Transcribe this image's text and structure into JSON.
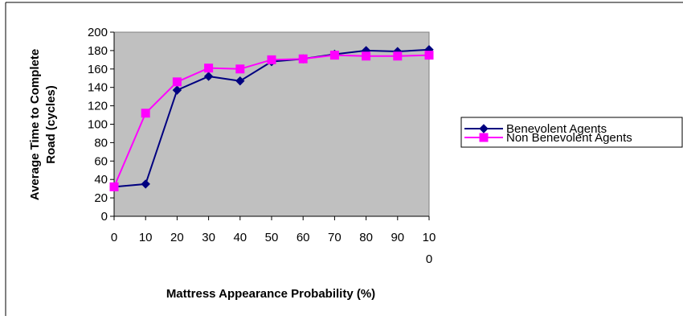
{
  "chart_data": {
    "type": "line",
    "xlabel": "Mattress Appearance Probability  (%)",
    "ylabel_lines": [
      "Average Time to Complete",
      "Road (cycles)"
    ],
    "x": [
      0,
      10,
      20,
      30,
      40,
      50,
      60,
      70,
      80,
      90,
      100
    ],
    "x_tick_labels": [
      "0",
      "10",
      "20",
      "30",
      "40",
      "50",
      "60",
      "70",
      "80",
      "90",
      "10|0"
    ],
    "xlim": [
      0,
      100
    ],
    "ylim": [
      0,
      200
    ],
    "y_ticks": [
      0,
      20,
      40,
      60,
      80,
      100,
      120,
      140,
      160,
      180,
      200
    ],
    "grid": false,
    "plot_background": "#c0c0c0",
    "legend_position": "right",
    "series": [
      {
        "name": "Benevolent Agents",
        "color": "#000080",
        "marker": "diamond",
        "values": [
          32,
          35,
          137,
          152,
          147,
          168,
          171,
          176,
          180,
          179,
          181
        ]
      },
      {
        "name": "Non Benevolent Agents",
        "color": "#ff00ff",
        "marker": "square",
        "values": [
          32,
          112,
          146,
          161,
          160,
          170,
          171,
          175,
          174,
          174,
          175
        ]
      }
    ]
  }
}
